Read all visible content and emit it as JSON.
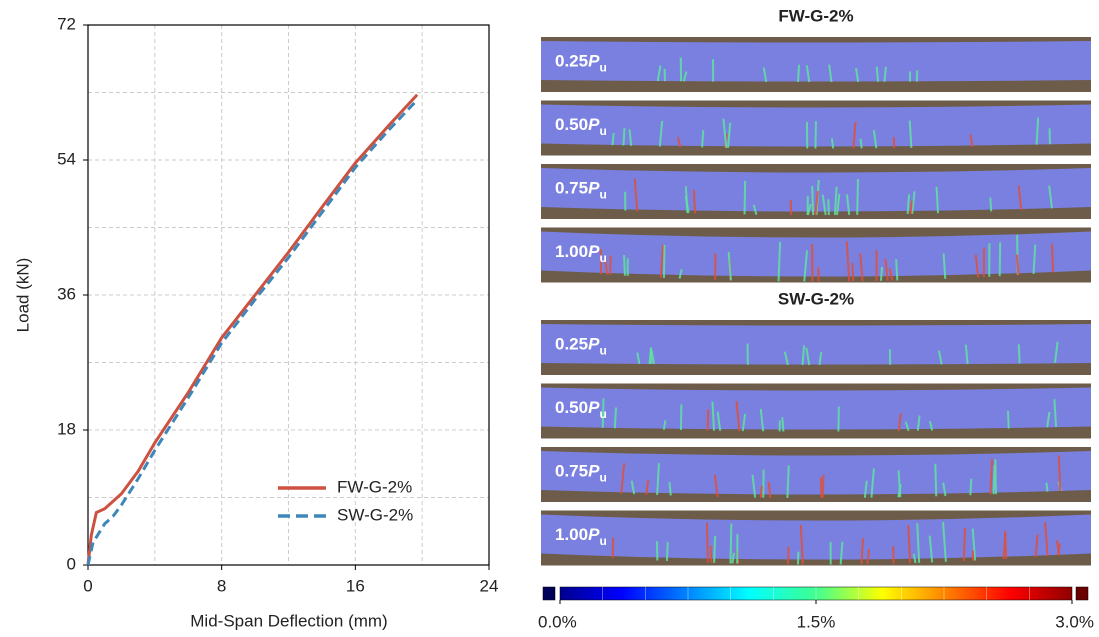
{
  "chart_data": {
    "type": "line",
    "xlabel": "Mid-Span Deflection (mm)",
    "ylabel": "Load (kN)",
    "xlim": [
      0,
      24
    ],
    "ylim": [
      0,
      72
    ],
    "xticks": [
      0,
      8,
      16,
      24
    ],
    "yticks": [
      0,
      18,
      36,
      54,
      72
    ],
    "x_minor_ticks": [
      4,
      12,
      20
    ],
    "y_minor_ticks": [
      9,
      27,
      45,
      63
    ],
    "grid": true,
    "legend": "lower right",
    "series": [
      {
        "name": "FW-G-2%",
        "color": "#cd5140",
        "dash": false,
        "x": [
          0,
          0.2,
          0.5,
          1,
          1.5,
          2,
          2.5,
          3,
          4,
          6,
          8,
          10,
          12,
          14,
          16,
          18,
          19.7
        ],
        "values": [
          0,
          4,
          7,
          7.5,
          8.5,
          9.5,
          11,
          12.5,
          16.3,
          23,
          30.3,
          36,
          41.7,
          47.7,
          53.6,
          58.6,
          62.7
        ]
      },
      {
        "name": "SW-G-2%",
        "color": "#3d87ba",
        "dash": true,
        "x": [
          0,
          0.3,
          1,
          1.5,
          2,
          3,
          4,
          6,
          8,
          10,
          12,
          14,
          16,
          18,
          19.7
        ],
        "values": [
          0,
          3,
          5.5,
          6.5,
          8,
          11.5,
          15.3,
          22.3,
          29.6,
          35.4,
          41,
          47,
          53,
          58,
          62
        ]
      }
    ]
  },
  "dic": {
    "groups": [
      {
        "title": "FW-G-2%",
        "panels": [
          {
            "label": {
              "value": "0.25",
              "variable": "P",
              "subscript": "u"
            }
          },
          {
            "label": {
              "value": "0.50",
              "variable": "P",
              "subscript": "u"
            }
          },
          {
            "label": {
              "value": "0.75",
              "variable": "P",
              "subscript": "u"
            }
          },
          {
            "label": {
              "value": "1.00",
              "variable": "P",
              "subscript": "u"
            }
          }
        ]
      },
      {
        "title": "SW-G-2%",
        "panels": [
          {
            "label": {
              "value": "0.25",
              "variable": "P",
              "subscript": "u"
            }
          },
          {
            "label": {
              "value": "0.50",
              "variable": "P",
              "subscript": "u"
            }
          },
          {
            "label": {
              "value": "0.75",
              "variable": "P",
              "subscript": "u"
            }
          },
          {
            "label": {
              "value": "1.00",
              "variable": "P",
              "subscript": "u"
            }
          }
        ]
      }
    ],
    "colorbar": {
      "lim": [
        0,
        3
      ],
      "ticks": [
        {
          "value": 0,
          "label": "0.0%"
        },
        {
          "value": 1.5,
          "label": "1.5%"
        },
        {
          "value": 3,
          "label": "3.0%"
        }
      ]
    }
  }
}
